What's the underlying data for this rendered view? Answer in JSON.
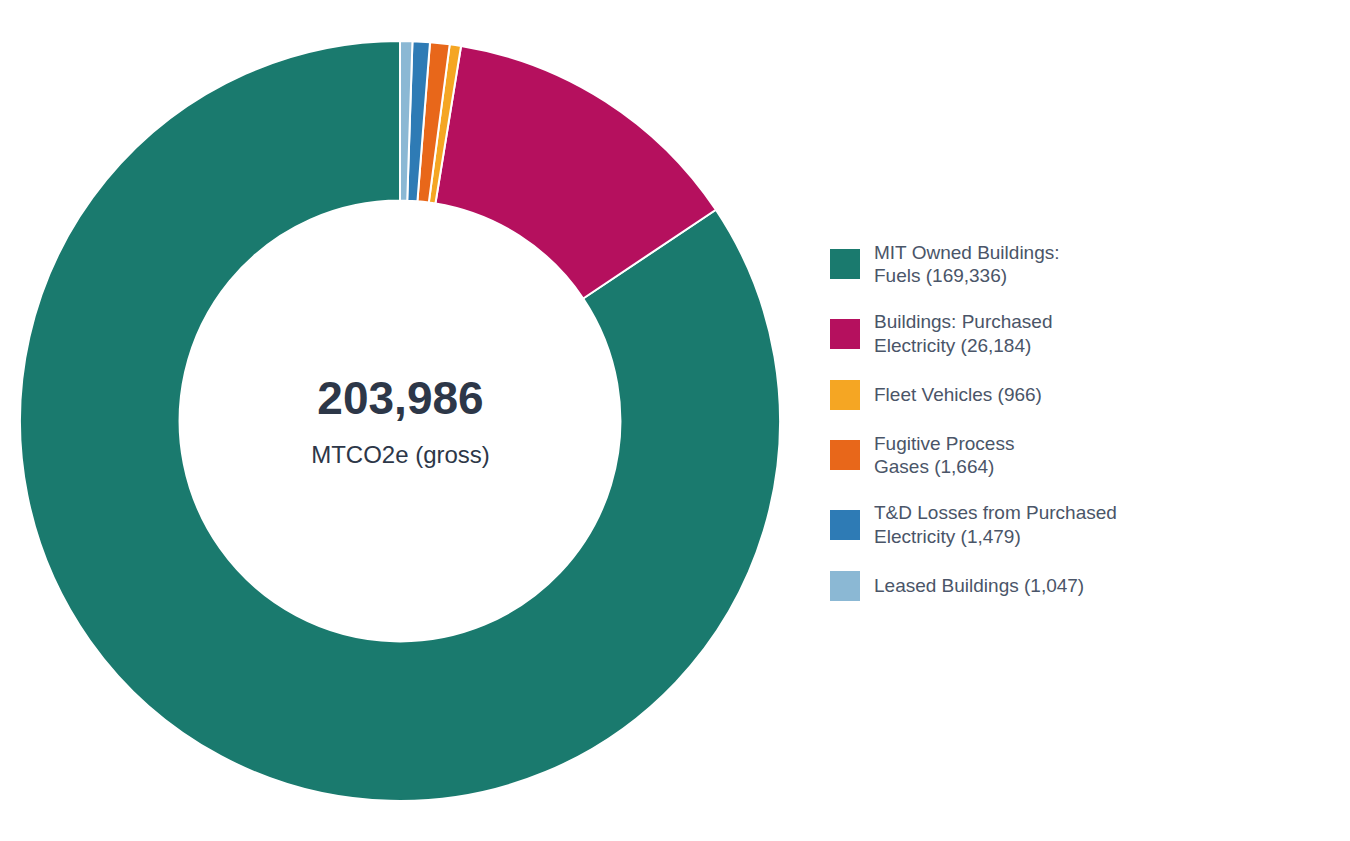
{
  "chart_data": {
    "type": "pie",
    "categories": [
      "MIT Owned Buildings:\nFuels (169,336)",
      "Buildings: Purchased\nElectricity (26,184)",
      "Fleet Vehicles (966)",
      "Fugitive Process\nGases (1,664)",
      "T&D Losses from Purchased\nElectricity (1,479)",
      "Leased Buildings (1,047)"
    ],
    "values": [
      169336,
      26184,
      966,
      1664,
      1479,
      1047
    ],
    "colors": [
      "#1a7a6e",
      "#b5105e",
      "#f5a623",
      "#e8671a",
      "#2e7bb5",
      "#8bb8d4"
    ],
    "annotations": [
      "203,986",
      "MTCO2e (gross)"
    ],
    "legend": "right"
  }
}
